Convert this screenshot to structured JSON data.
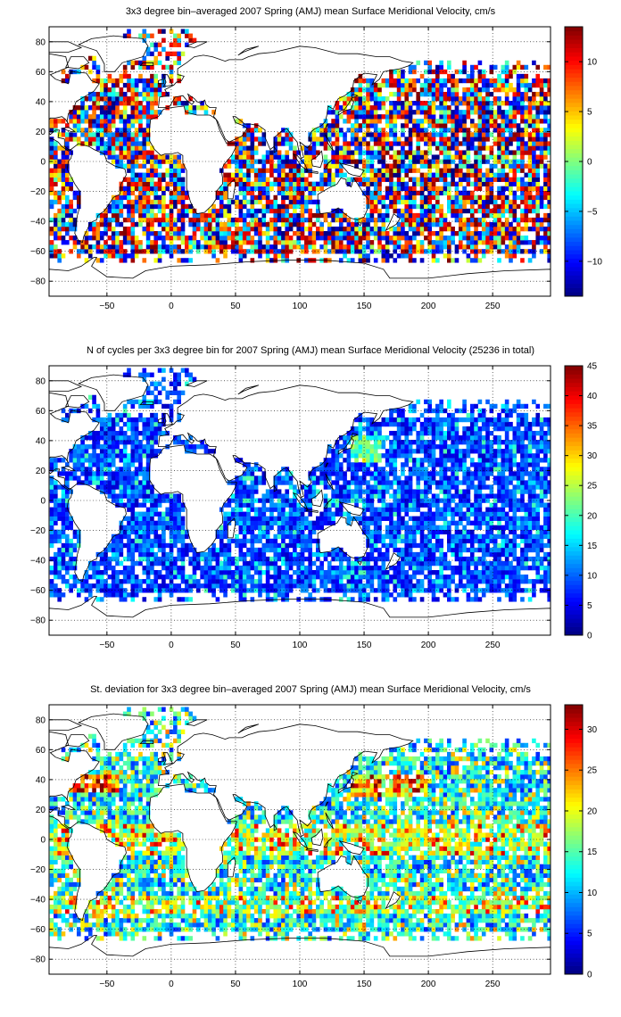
{
  "chart_data": [
    {
      "type": "heatmap",
      "title": "3x3 degree bin–averaged 2007 Spring (AMJ) mean Surface Meridional Velocity, cm/s",
      "xlabel": "",
      "ylabel": "",
      "xlim": [
        -95,
        295
      ],
      "ylim": [
        -90,
        90
      ],
      "xticks": [
        -50,
        0,
        50,
        100,
        150,
        200,
        250
      ],
      "yticks": [
        -80,
        -60,
        -40,
        -20,
        0,
        20,
        40,
        60,
        80
      ],
      "bin_deg": 3,
      "colormap": "jet",
      "colorbar": {
        "min": -13.5,
        "max": 13.5,
        "ticks": [
          -10,
          -5,
          0,
          5,
          10
        ]
      },
      "grid": true
    },
    {
      "type": "heatmap",
      "title": "N of cycles per 3x3 degree bin for 2007 Spring (AMJ) mean Surface Meridional Velocity (25236 in total)",
      "xlabel": "",
      "ylabel": "",
      "xlim": [
        -95,
        295
      ],
      "ylim": [
        -90,
        90
      ],
      "xticks": [
        -50,
        0,
        50,
        100,
        150,
        200,
        250
      ],
      "yticks": [
        -80,
        -60,
        -40,
        -20,
        0,
        20,
        40,
        60,
        80
      ],
      "bin_deg": 3,
      "colormap": "jet",
      "colorbar": {
        "min": 0,
        "max": 45,
        "ticks": [
          0,
          5,
          10,
          15,
          20,
          25,
          30,
          35,
          40,
          45
        ]
      },
      "grid": true
    },
    {
      "type": "heatmap",
      "title": "St. deviation for 3x3 degree bin–averaged 2007 Spring (AMJ) mean Surface Meridional Velocity, cm/s",
      "xlabel": "",
      "ylabel": "",
      "xlim": [
        -95,
        295
      ],
      "ylim": [
        -90,
        90
      ],
      "xticks": [
        -50,
        0,
        50,
        100,
        150,
        200,
        250
      ],
      "yticks": [
        -80,
        -60,
        -40,
        -20,
        0,
        20,
        40,
        60,
        80
      ],
      "bin_deg": 3,
      "colormap": "jet",
      "colorbar": {
        "min": 0,
        "max": 33,
        "ticks": [
          0,
          5,
          10,
          15,
          20,
          25,
          30
        ]
      },
      "grid": true
    }
  ]
}
